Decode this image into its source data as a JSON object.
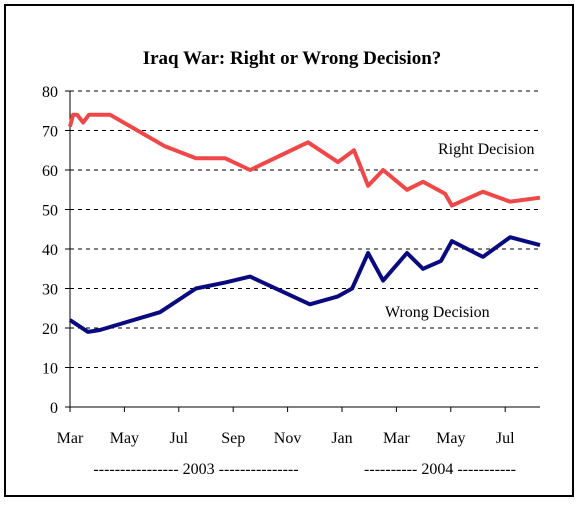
{
  "chart_data": {
    "type": "line",
    "title": "Iraq War: Right or Wrong Decision?",
    "x": null,
    "series": [
      {
        "name": "Right Decision",
        "color": "#f04848",
        "x": [
          0,
          0.11,
          0.26,
          0.48,
          0.7,
          1.47,
          3.49,
          4.63,
          5.7,
          6.62,
          8.75,
          9.85,
          10.44,
          10.96,
          11.51,
          12.39,
          12.98,
          13.79,
          14.04,
          15.18,
          16.18,
          17.28
        ],
        "values": [
          71,
          74,
          74,
          72,
          74,
          74,
          66,
          63,
          63,
          60,
          67,
          62,
          65,
          56,
          60,
          55,
          57,
          54,
          51,
          54.5,
          52,
          53
        ]
      },
      {
        "name": "Wrong Decision",
        "color": "#0a0a80",
        "x": [
          0,
          0.66,
          1.1,
          3.31,
          4.63,
          5.7,
          6.62,
          8.82,
          9.85,
          10.37,
          10.96,
          11.51,
          12.39,
          12.98,
          13.64,
          14.04,
          15.18,
          16.18,
          17.28
        ],
        "values": [
          22,
          19,
          19.5,
          24,
          30,
          31.5,
          33,
          26,
          28,
          30,
          39,
          32,
          39,
          35,
          37,
          42,
          38,
          43,
          41
        ]
      }
    ],
    "xlim": [
      0,
      17.28
    ],
    "xticks": [
      {
        "value": 0,
        "label": "Mar"
      },
      {
        "value": 2,
        "label": "May"
      },
      {
        "value": 4,
        "label": "Jul"
      },
      {
        "value": 6,
        "label": "Sep"
      },
      {
        "value": 8,
        "label": "Nov"
      },
      {
        "value": 10,
        "label": "Jan"
      },
      {
        "value": 12,
        "label": "Mar"
      },
      {
        "value": 14,
        "label": "May"
      },
      {
        "value": 16,
        "label": "Jul"
      }
    ],
    "ylim": [
      0,
      80
    ],
    "yticks": [
      0,
      10,
      20,
      30,
      40,
      50,
      60,
      70,
      80
    ],
    "grid": true,
    "year_labels": [
      "---------------- 2003 ---------------",
      "---------- 2004 -----------"
    ]
  }
}
